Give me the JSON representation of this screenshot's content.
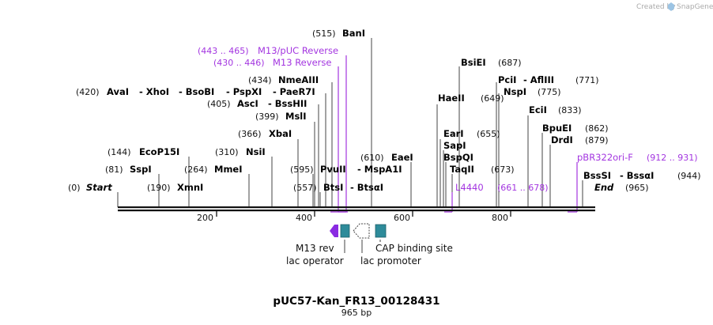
{
  "header": {
    "credit": "Created by",
    "brand": "SnapGene"
  },
  "map": {
    "title": "pUC57-Kan_FR13_00128431",
    "length_label": "965 bp",
    "scale_ticks": [
      "200",
      "400",
      "600",
      "800"
    ]
  },
  "enzymes": {
    "row1": [
      {
        "pos": "(0)",
        "name": "Start",
        "italic": true
      },
      {
        "pos": "(190)",
        "name": "XmnI"
      },
      {
        "pos": "(557)",
        "name": "BtsI",
        "extra": "- BtsαI"
      },
      {
        "pos": "",
        "name": "End",
        "italic": true,
        "after": "(965)"
      }
    ],
    "items": [
      {
        "text": "(81)",
        "type": "pos"
      },
      {
        "text": "SspI",
        "type": "name"
      },
      {
        "text": "(264)",
        "type": "pos"
      },
      {
        "text": "MmeI",
        "type": "name"
      },
      {
        "text": "(144)",
        "type": "pos"
      },
      {
        "text": "EcoP15I",
        "type": "name"
      },
      {
        "text": "(310)",
        "type": "pos"
      },
      {
        "text": "NsiI",
        "type": "name"
      },
      {
        "text": "(366)",
        "type": "pos"
      },
      {
        "text": "XbaI",
        "type": "name"
      },
      {
        "text": "(399)",
        "type": "pos"
      },
      {
        "text": "MslI",
        "type": "name"
      },
      {
        "text": "(405)",
        "type": "pos"
      },
      {
        "text": "AscI",
        "type": "name"
      },
      {
        "text": "- BssHII",
        "type": "name"
      },
      {
        "text": "(420)",
        "type": "pos"
      },
      {
        "text": "AvaI",
        "type": "name"
      },
      {
        "text": "- XhoI",
        "type": "name"
      },
      {
        "text": "- BsoBI",
        "type": "name"
      },
      {
        "text": "- PspXI",
        "type": "name"
      },
      {
        "text": "- PaeR7I",
        "type": "name"
      },
      {
        "text": "(434)",
        "type": "pos"
      },
      {
        "text": "NmeAIII",
        "type": "name"
      },
      {
        "text": "(515)",
        "type": "pos"
      },
      {
        "text": "BanI",
        "type": "name"
      },
      {
        "text": "(595)",
        "type": "pos"
      },
      {
        "text": "PvuII",
        "type": "name"
      },
      {
        "text": "- MspA1I",
        "type": "name"
      },
      {
        "text": "(610)",
        "type": "pos"
      },
      {
        "text": "EaeI",
        "type": "name"
      },
      {
        "text": "HaeII",
        "type": "name"
      },
      {
        "text": "(649)",
        "type": "pos"
      },
      {
        "text": "EarI",
        "type": "name"
      },
      {
        "text": "(655)",
        "type": "pos"
      },
      {
        "text": "SapI",
        "type": "name"
      },
      {
        "text": "BspQI",
        "type": "name"
      },
      {
        "text": "TaqII",
        "type": "name"
      },
      {
        "text": "(673)",
        "type": "pos"
      },
      {
        "text": "BsiEI",
        "type": "name"
      },
      {
        "text": "(687)",
        "type": "pos"
      },
      {
        "text": "PciI",
        "type": "name"
      },
      {
        "text": "- AflIII",
        "type": "name"
      },
      {
        "text": "(771)",
        "type": "pos"
      },
      {
        "text": "NspI",
        "type": "name"
      },
      {
        "text": "(775)",
        "type": "pos"
      },
      {
        "text": "EciI",
        "type": "name"
      },
      {
        "text": "(833)",
        "type": "pos"
      },
      {
        "text": "BpuEI",
        "type": "name"
      },
      {
        "text": "(862)",
        "type": "pos"
      },
      {
        "text": "DrdI",
        "type": "name"
      },
      {
        "text": "(879)",
        "type": "pos"
      },
      {
        "text": "BssSI",
        "type": "name"
      },
      {
        "text": "- BssαI",
        "type": "name"
      },
      {
        "text": "(944)",
        "type": "pos"
      }
    ]
  },
  "primers": [
    {
      "range": "(443 .. 465)",
      "name": "M13/pUC Reverse"
    },
    {
      "range": "(430 .. 446)",
      "name": "M13 Reverse"
    },
    {
      "range": "(661 .. 678)",
      "name": "L4440"
    },
    {
      "range": "(912 .. 931)",
      "name": "pBR322ori-F"
    }
  ],
  "features": {
    "m13_rev": "M13 rev",
    "lac_operator": "lac operator",
    "lac_promoter": "lac promoter",
    "cap_site": "CAP binding site"
  },
  "colors": {
    "primer": "#a335e0",
    "feature_teal": "#2e8b9a",
    "m13_arrow": "#8a2be2",
    "backbone": "#111111"
  }
}
